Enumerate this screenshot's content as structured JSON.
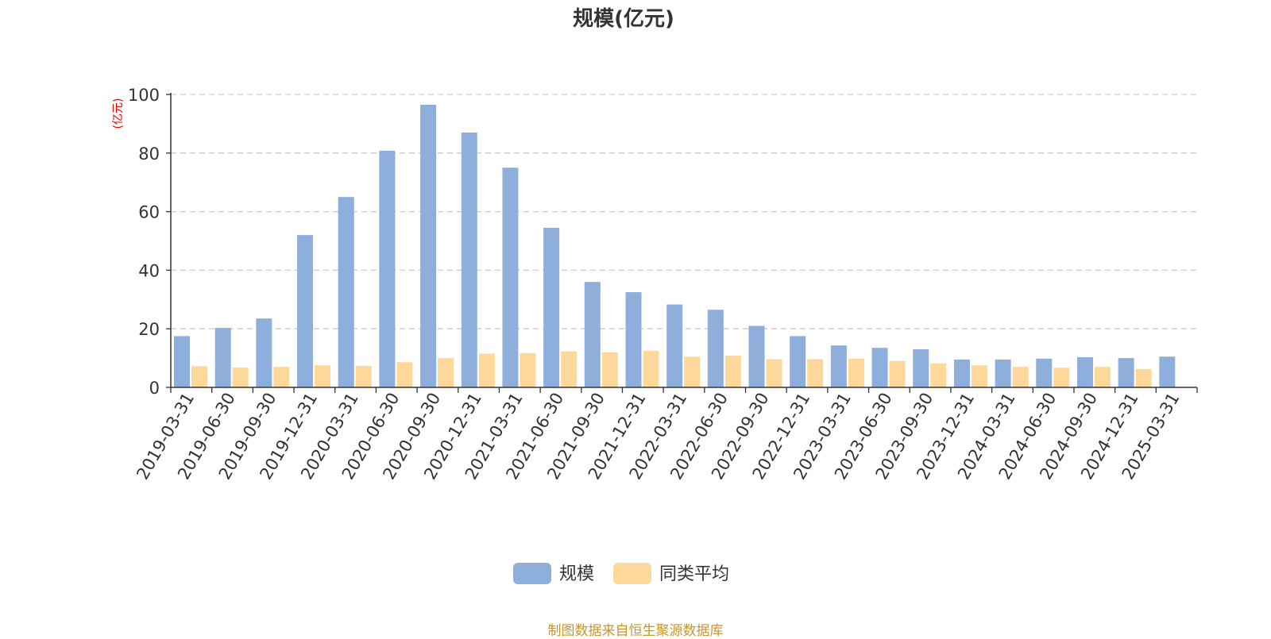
{
  "chart_data": {
    "type": "bar",
    "title": "规模(亿元)",
    "ylabel": "(亿元)",
    "xlabel": "",
    "ylim": [
      0,
      100
    ],
    "yticks": [
      0,
      20,
      40,
      60,
      80,
      100
    ],
    "grid": "horizontal dashed",
    "legend_position": "bottom-center",
    "categories": [
      "2019-03-31",
      "2019-06-30",
      "2019-09-30",
      "2019-12-31",
      "2020-03-31",
      "2020-06-30",
      "2020-09-30",
      "2020-12-31",
      "2021-03-31",
      "2021-06-30",
      "2021-09-30",
      "2021-12-31",
      "2022-03-31",
      "2022-06-30",
      "2022-09-30",
      "2022-12-31",
      "2023-03-31",
      "2023-06-30",
      "2023-09-30",
      "2023-12-31",
      "2024-03-31",
      "2024-06-30",
      "2024-09-30",
      "2024-12-31",
      "2025-03-31"
    ],
    "series": [
      {
        "name": "规模",
        "color": "#8eaedb",
        "values": [
          17.5,
          20.3,
          23.5,
          52.0,
          65.0,
          80.8,
          96.5,
          87.0,
          75.0,
          54.5,
          36.0,
          32.5,
          28.3,
          26.5,
          21.0,
          17.5,
          14.3,
          13.5,
          13.0,
          9.5,
          9.5,
          9.8,
          10.3,
          10.0,
          10.5
        ]
      },
      {
        "name": "同类平均",
        "color": "#fdd89a",
        "values": [
          7.2,
          6.8,
          7.0,
          7.5,
          7.3,
          8.6,
          10.0,
          11.5,
          11.7,
          12.3,
          12.0,
          12.5,
          10.5,
          10.8,
          9.6,
          9.6,
          9.8,
          9.0,
          8.2,
          7.5,
          7.0,
          6.7,
          7.0,
          6.3,
          null
        ]
      }
    ]
  },
  "source_note": "制图数据来自恒生聚源数据库"
}
